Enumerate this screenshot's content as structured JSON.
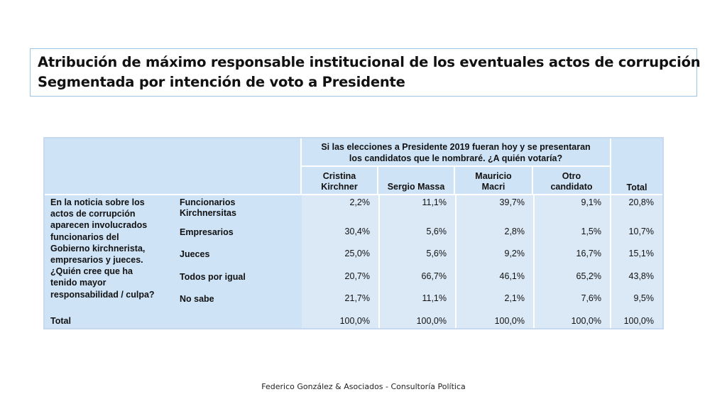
{
  "title": {
    "line1": "Atribución de máximo responsable institucional de los eventuales actos de corrupción",
    "line2": "Segmentada por intención de voto a Presidente"
  },
  "table": {
    "question_line1": "Si las elecciones a Presidente 2019 fueran hoy y se presentaran",
    "question_line2": "los candidatos que le nombraré. ¿A quién votaría?",
    "columns": [
      {
        "line1": "Cristina",
        "line2": "Kirchner"
      },
      {
        "line1": "",
        "line2": "Sergio Massa"
      },
      {
        "line1": "Mauricio",
        "line2": "Macri"
      },
      {
        "line1": "Otro",
        "line2": "candidato"
      }
    ],
    "total_header": "Total",
    "stub_lines": [
      "En la noticia sobre los",
      "actos de corrupción",
      "aparecen involucrados",
      "funcionarios del",
      "Gobierno kirchnerista,",
      "empresarios y jueces.",
      "¿Quién cree que ha",
      "tenido mayor",
      "responsabilidad / culpa?"
    ],
    "rows": [
      {
        "label1": "Funcionarios",
        "label2": "Kirchnersitas",
        "values": [
          "2,2%",
          "11,1%",
          "39,7%",
          "9,1%",
          "20,8%"
        ]
      },
      {
        "label1": "Empresarios",
        "label2": "",
        "values": [
          "30,4%",
          "5,6%",
          "2,8%",
          "1,5%",
          "10,7%"
        ]
      },
      {
        "label1": "Jueces",
        "label2": "",
        "values": [
          "25,0%",
          "5,6%",
          "9,2%",
          "16,7%",
          "15,1%"
        ]
      },
      {
        "label1": "Todos por igual",
        "label2": "",
        "values": [
          "20,7%",
          "66,7%",
          "46,1%",
          "65,2%",
          "43,8%"
        ]
      },
      {
        "label1": "No sabe",
        "label2": "",
        "values": [
          "21,7%",
          "11,1%",
          "2,1%",
          "7,6%",
          "9,5%"
        ]
      }
    ],
    "total_row": {
      "label": "Total",
      "values": [
        "100,0%",
        "100,0%",
        "100,0%",
        "100,0%",
        "100,0%"
      ]
    }
  },
  "footer": "Federico González & Asociados - Consultoría Política"
}
